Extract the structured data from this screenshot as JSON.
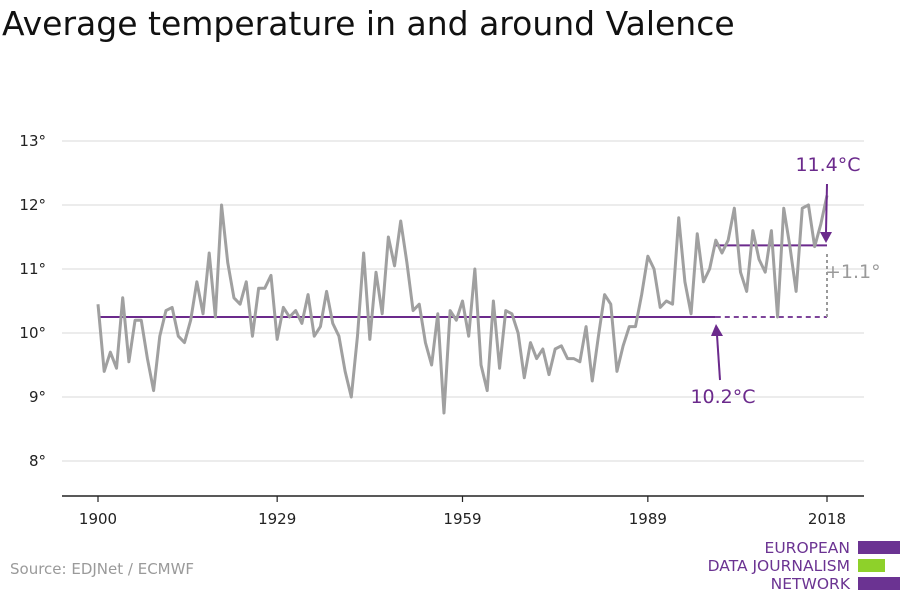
{
  "title": "Average temperature in and around Valence",
  "source": "Source: EDJNet / ECMWF",
  "logo": {
    "lines": [
      "EUROPEAN",
      "DATA JOURNALISM",
      "NETWORK"
    ]
  },
  "colors": {
    "series": "#a0a0a0",
    "accent": "#6b2a8c",
    "grid": "#d9d9d9",
    "axis": "#222222",
    "delta": "#9a9a9a",
    "logo_green": "#8ed12a"
  },
  "chart_data": {
    "type": "line",
    "title": "Average temperature in and around Valence",
    "xlabel": "",
    "ylabel": "",
    "xlim": [
      1900,
      2018
    ],
    "ylim": [
      7.5,
      13.5
    ],
    "x_ticks": [
      1900,
      1929,
      1959,
      1989,
      2018
    ],
    "y_ticks": [
      8,
      9,
      10,
      11,
      12,
      13
    ],
    "y_tick_labels": [
      "8°",
      "9°",
      "10°",
      "11°",
      "12°",
      "13°"
    ],
    "grid": "horizontal",
    "series": [
      {
        "x_start": 1900,
        "values": [
          10.45,
          9.4,
          9.7,
          9.45,
          10.55,
          9.55,
          10.2,
          10.2,
          9.6,
          9.1,
          9.95,
          10.35,
          10.4,
          9.95,
          9.85,
          10.2,
          10.8,
          10.3,
          11.25,
          10.25,
          12.0,
          11.1,
          10.55,
          10.45,
          10.8,
          9.95,
          10.7,
          10.7,
          10.9,
          9.9,
          10.4,
          10.25,
          10.35,
          10.15,
          10.6,
          9.95,
          10.1,
          10.65,
          10.15,
          9.95,
          9.4,
          9.0,
          9.95,
          11.25,
          9.9,
          10.95,
          10.3,
          11.5,
          11.05,
          11.75,
          11.1,
          10.35,
          10.45,
          9.85,
          9.5,
          10.3,
          8.75,
          10.35,
          10.2,
          10.5,
          9.95,
          11.0,
          9.5,
          9.1,
          10.5,
          9.45,
          10.35,
          10.3,
          10.0,
          9.3,
          9.85,
          9.6,
          9.75,
          9.35,
          9.75,
          9.8,
          9.6,
          9.6,
          9.55,
          10.1,
          9.25,
          9.95,
          10.6,
          10.45,
          9.4,
          9.8,
          10.1,
          10.1,
          10.6,
          11.2,
          11.0,
          10.4,
          10.5,
          10.45,
          11.8,
          10.8,
          10.3,
          11.55,
          10.8,
          11.0,
          11.45,
          11.25,
          11.45,
          11.95,
          10.95,
          10.65,
          11.6,
          11.15,
          10.95,
          11.6,
          10.25,
          11.95,
          11.35,
          10.65,
          11.95,
          12.0,
          11.35,
          11.7,
          12.15
        ]
      }
    ],
    "baseline": {
      "label": "10.2°C",
      "value": 10.25,
      "from": 1900,
      "to": 2018
    },
    "recent_average": {
      "label": "11.4°C",
      "value": 11.37,
      "from": 2000,
      "to": 2018
    },
    "delta_label": "+1.1°"
  }
}
